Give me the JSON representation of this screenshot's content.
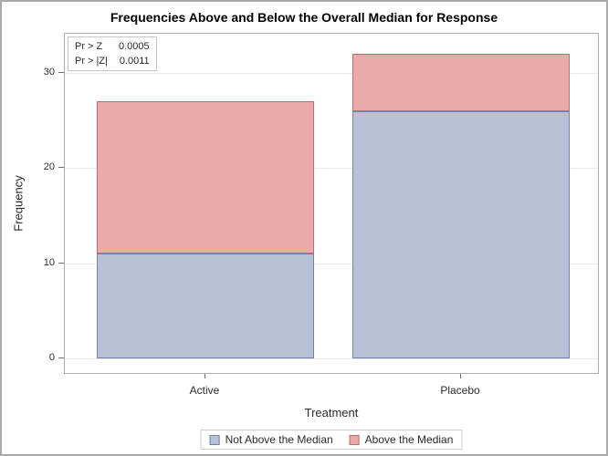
{
  "chart_data": {
    "type": "bar",
    "stacked": true,
    "title": "Frequencies Above and Below the Overall Median for Response",
    "categories": [
      "Active",
      "Placebo"
    ],
    "series": [
      {
        "name": "Not Above the Median",
        "values": [
          11,
          26
        ],
        "fill": "#b9c1d8",
        "stroke": "#7480ab"
      },
      {
        "name": "Above the Median",
        "values": [
          16,
          6
        ],
        "fill": "#e8abaa",
        "stroke": "#bf6b6d"
      }
    ],
    "stack_totals": [
      27,
      32
    ],
    "xlabel": "Treatment",
    "ylabel": "Frequency",
    "yticks": [
      0,
      10,
      20,
      30
    ],
    "ylim": [
      0,
      34
    ],
    "grid": true,
    "legend_position": "bottom",
    "annotations": [
      {
        "label": "Pr > Z",
        "value": "0.0005"
      },
      {
        "label": "Pr > |Z|",
        "value": "0.0011"
      }
    ]
  },
  "inset": {
    "rows": [
      {
        "label": "Pr > Z",
        "value": "0.0005"
      },
      {
        "label": "Pr > |Z|",
        "value": "0.0011"
      }
    ]
  }
}
